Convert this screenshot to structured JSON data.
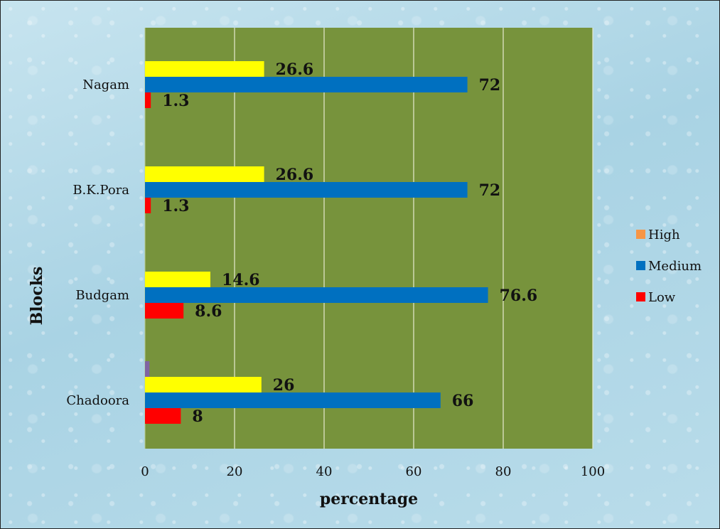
{
  "chart_data": {
    "type": "bar",
    "orientation": "horizontal",
    "categories": [
      "Chadoora",
      "Budgam",
      "B.K.Pora",
      "Nagam"
    ],
    "series": [
      {
        "name": "Low",
        "color": "#ff0000",
        "values": [
          8,
          8.6,
          1.3,
          1.3
        ]
      },
      {
        "name": "Medium",
        "color": "#0070c0",
        "values": [
          66,
          76.6,
          72,
          72
        ]
      },
      {
        "name": "",
        "color": "#ffff00",
        "values": [
          26,
          14.6,
          26.6,
          26.6
        ]
      },
      {
        "name": "High",
        "color": "#8064a2",
        "values": [
          1,
          0,
          0,
          0
        ]
      }
    ],
    "legend": {
      "position": "right",
      "entries": [
        {
          "label": "High",
          "color": "#f79646"
        },
        {
          "label": "Medium",
          "color": "#0070c0"
        },
        {
          "label": "Low",
          "color": "#ff0000"
        }
      ]
    },
    "xlabel": "percentage",
    "ylabel": "Blocks",
    "xlim": [
      0,
      100
    ],
    "xticks": [
      "0",
      "20",
      "40",
      "60",
      "80",
      "100"
    ],
    "grid": true,
    "plot_background": "#77933c"
  }
}
